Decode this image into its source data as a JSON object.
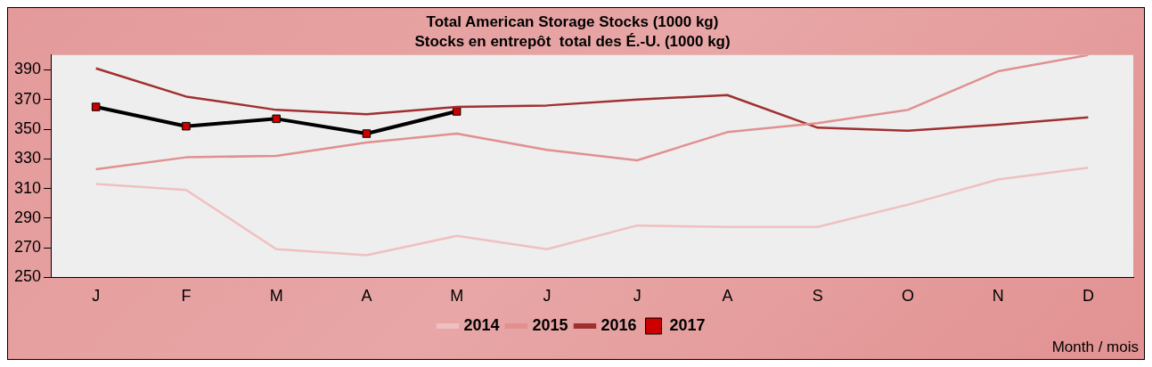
{
  "chart_data": {
    "type": "line",
    "title": "Total American Storage Stocks (1000 kg)",
    "subtitle": "Stocks en entrepôt  total des É.-U. (1000 kg)",
    "categories": [
      "J",
      "F",
      "M",
      "A",
      "M",
      "J",
      "J",
      "A",
      "S",
      "O",
      "N",
      "D"
    ],
    "series": [
      {
        "name": "2014",
        "color": "#f0c0c0",
        "marker": "none",
        "values": [
          313,
          309,
          269,
          265,
          278,
          269,
          285,
          284,
          284,
          299,
          316,
          324
        ]
      },
      {
        "name": "2015",
        "color": "#e09090",
        "marker": "none",
        "values": [
          323,
          331,
          332,
          341,
          347,
          336,
          329,
          348,
          354,
          363,
          389,
          400
        ]
      },
      {
        "name": "2016",
        "color": "#a03030",
        "marker": "none",
        "values": [
          391,
          372,
          363,
          360,
          365,
          366,
          370,
          373,
          351,
          349,
          353,
          358
        ]
      },
      {
        "name": "2017",
        "color": "#000000",
        "marker": "square",
        "values": [
          365,
          352,
          357,
          347,
          362,
          null,
          null,
          null,
          null,
          null,
          null,
          null
        ]
      }
    ],
    "ylim": [
      250,
      400
    ],
    "yticks": [
      250,
      270,
      290,
      310,
      330,
      350,
      370,
      390
    ],
    "legend": "bottom",
    "annotations": [
      "Month / mois"
    ]
  }
}
